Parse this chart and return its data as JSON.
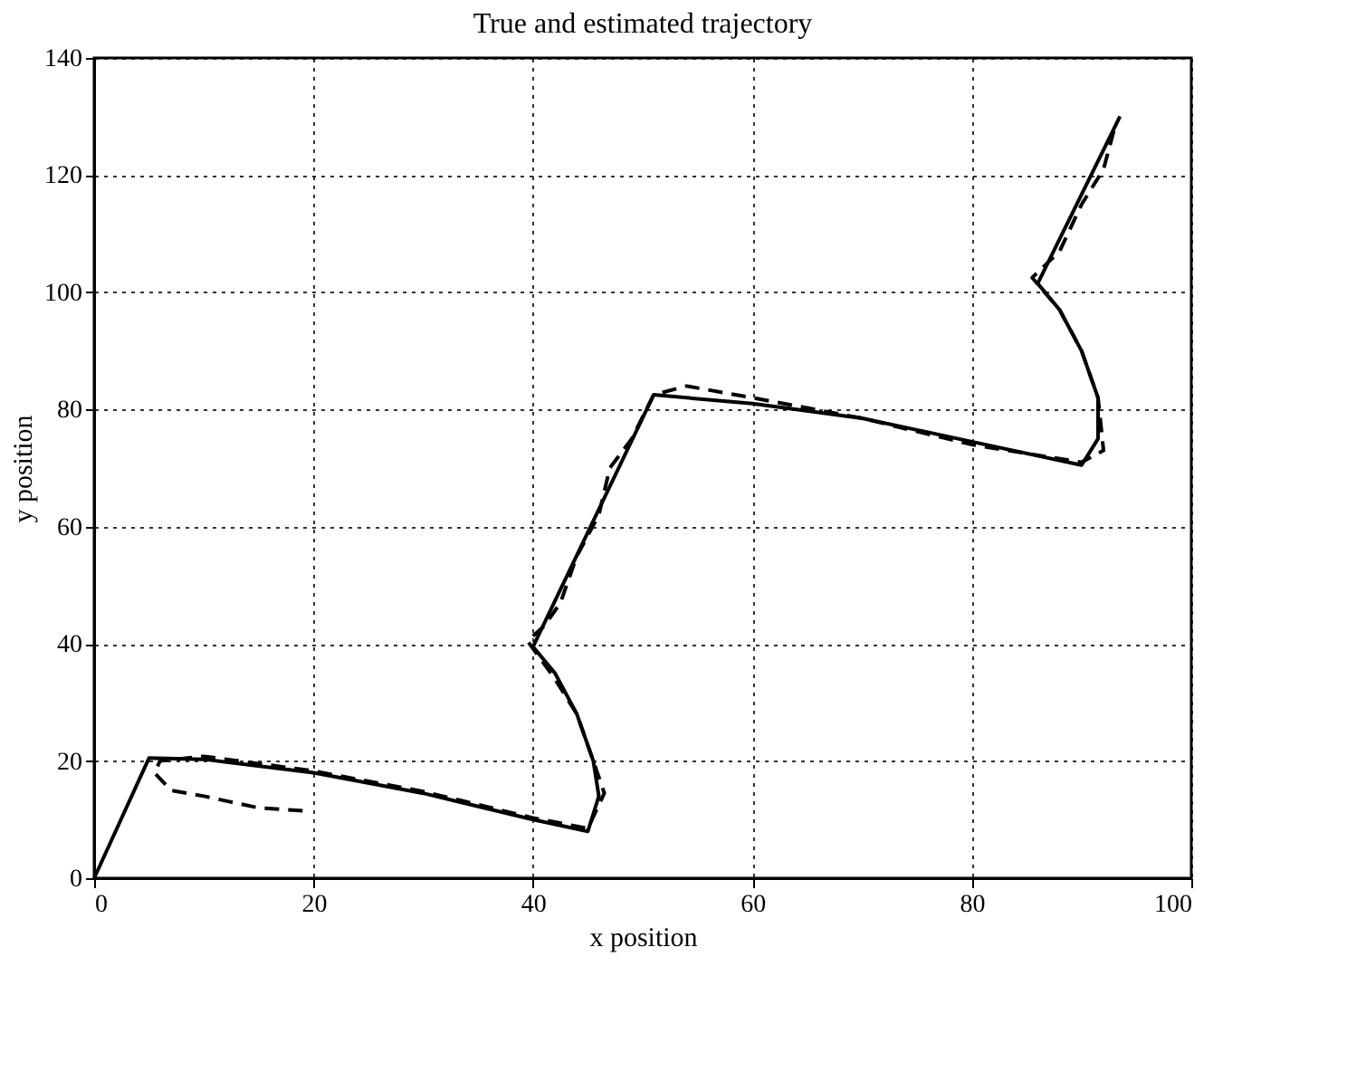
{
  "chart_data": {
    "type": "line",
    "title": "True and estimated trajectory",
    "xlabel": "x position",
    "ylabel": "y position",
    "xlim": [
      0,
      100
    ],
    "xticks": [
      0,
      20,
      40,
      60,
      80,
      100
    ],
    "ylim": [
      0,
      140
    ],
    "yticks": [
      0,
      20,
      40,
      60,
      80,
      100,
      120,
      140
    ],
    "grid": true,
    "marker": "none",
    "series": [
      {
        "color": "#000000",
        "line_style": "solid",
        "x": [
          0,
          5,
          10,
          20,
          30,
          40,
          45,
          46,
          45.5,
          44,
          42,
          40,
          51,
          60,
          70,
          80,
          90,
          91.5,
          91.5,
          90,
          88,
          86,
          93.5
        ],
        "values": [
          0,
          20.5,
          20.3,
          18,
          14.5,
          10,
          8,
          14,
          20,
          28,
          35,
          39.5,
          82.5,
          81,
          78.5,
          74.5,
          70.5,
          75,
          82,
          90,
          97,
          101.5,
          130
        ]
      },
      {
        "color": "#000000",
        "line_style": "dashed",
        "x": [
          19,
          15,
          10,
          7,
          5.5,
          6,
          10,
          20,
          30,
          40,
          45,
          46.5,
          45.5,
          44,
          42,
          39.5,
          41,
          42.5,
          44,
          46,
          47,
          49,
          51,
          54,
          60,
          70,
          80,
          90,
          92,
          91.5,
          90,
          88,
          85.5,
          88,
          90,
          92,
          93
        ],
        "values": [
          11.5,
          12,
          14,
          15,
          18,
          20,
          20.8,
          18.3,
          14.8,
          10.3,
          8.5,
          14.5,
          20,
          28,
          34,
          40.5,
          43,
          47,
          55,
          62,
          70,
          75,
          82.5,
          84,
          82,
          78.5,
          74,
          71,
          73,
          82,
          90,
          97,
          102.5,
          107,
          115,
          121,
          128
        ]
      }
    ]
  }
}
